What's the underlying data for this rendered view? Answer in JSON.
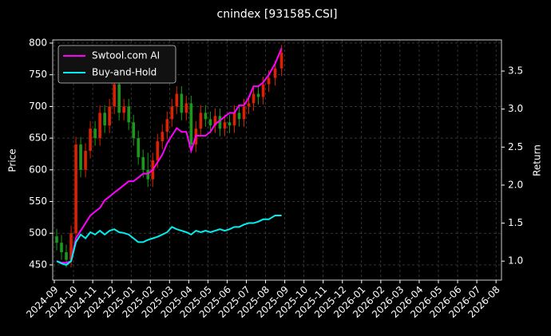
{
  "chart_data": {
    "type": "candlestick",
    "title": "cnindex [931585.CSI]",
    "ylabel": "Price",
    "y2label": "Return",
    "x": [
      "2024-09",
      "2024-09",
      "2024-09",
      "2024-09",
      "2024-10",
      "2024-10",
      "2024-10",
      "2024-10",
      "2024-11",
      "2024-11",
      "2024-11",
      "2024-11",
      "2024-12",
      "2024-12",
      "2024-12",
      "2024-12",
      "2025-01",
      "2025-01",
      "2025-01",
      "2025-01",
      "2025-02",
      "2025-02",
      "2025-02",
      "2025-02",
      "2025-03",
      "2025-03",
      "2025-03",
      "2025-03",
      "2025-04",
      "2025-04",
      "2025-04",
      "2025-04",
      "2025-05",
      "2025-05",
      "2025-05",
      "2025-05",
      "2025-06",
      "2025-06",
      "2025-06",
      "2025-06",
      "2025-07",
      "2025-07",
      "2025-07",
      "2025-07",
      "2025-08",
      "2025-08",
      "2025-08"
    ],
    "open": [
      495,
      485,
      470,
      458,
      500,
      640,
      600,
      630,
      665,
      650,
      690,
      670,
      700,
      735,
      690,
      700,
      675,
      650,
      620,
      600,
      585,
      615,
      645,
      660,
      680,
      700,
      720,
      690,
      705,
      640,
      665,
      690,
      680,
      670,
      685,
      665,
      675,
      670,
      690,
      680,
      700,
      705,
      720,
      715,
      735,
      745,
      760
    ],
    "high": [
      507,
      497,
      482,
      512,
      652,
      652,
      642,
      677,
      677,
      702,
      702,
      712,
      747,
      747,
      712,
      712,
      687,
      662,
      632,
      627,
      627,
      657,
      672,
      692,
      712,
      732,
      732,
      717,
      717,
      677,
      702,
      702,
      692,
      697,
      697,
      687,
      687,
      702,
      702,
      712,
      717,
      732,
      732,
      747,
      757,
      772,
      797
    ],
    "low": [
      473,
      458,
      446,
      446,
      488,
      588,
      588,
      618,
      638,
      638,
      658,
      658,
      688,
      678,
      678,
      663,
      638,
      608,
      588,
      573,
      573,
      603,
      633,
      648,
      668,
      688,
      678,
      678,
      628,
      628,
      653,
      668,
      658,
      658,
      653,
      653,
      658,
      658,
      668,
      668,
      688,
      693,
      703,
      703,
      723,
      733,
      748
    ],
    "close": [
      485,
      470,
      458,
      500,
      640,
      600,
      630,
      665,
      650,
      690,
      670,
      700,
      735,
      690,
      700,
      675,
      650,
      620,
      600,
      585,
      615,
      645,
      660,
      680,
      700,
      720,
      690,
      705,
      640,
      665,
      690,
      680,
      670,
      685,
      665,
      675,
      670,
      690,
      680,
      700,
      705,
      720,
      715,
      735,
      745,
      760,
      785
    ],
    "up_color": "#e02000",
    "down_color": "#1a9a1a",
    "series": [
      {
        "name": "Swtool.com AI",
        "color": "#ff00ff",
        "axis": "y2",
        "values": [
          1.0,
          0.98,
          0.98,
          1.0,
          1.3,
          1.4,
          1.5,
          1.6,
          1.65,
          1.7,
          1.8,
          1.85,
          1.9,
          1.95,
          2.0,
          2.05,
          2.05,
          2.1,
          2.15,
          2.15,
          2.2,
          2.3,
          2.4,
          2.55,
          2.65,
          2.75,
          2.7,
          2.7,
          2.45,
          2.65,
          2.65,
          2.65,
          2.7,
          2.8,
          2.85,
          2.9,
          2.95,
          2.95,
          3.05,
          3.05,
          3.15,
          3.3,
          3.3,
          3.35,
          3.45,
          3.6,
          3.8
        ]
      },
      {
        "name": "Buy-and-Hold",
        "color": "#00f0f0",
        "axis": "y2",
        "values": [
          1.0,
          0.97,
          0.95,
          1.0,
          1.25,
          1.35,
          1.3,
          1.38,
          1.35,
          1.4,
          1.35,
          1.4,
          1.42,
          1.38,
          1.37,
          1.35,
          1.3,
          1.25,
          1.25,
          1.28,
          1.3,
          1.32,
          1.35,
          1.38,
          1.45,
          1.42,
          1.4,
          1.38,
          1.35,
          1.4,
          1.38,
          1.4,
          1.38,
          1.4,
          1.42,
          1.4,
          1.42,
          1.45,
          1.45,
          1.48,
          1.5,
          1.5,
          1.52,
          1.55,
          1.55,
          1.6,
          1.6
        ]
      }
    ],
    "ylim": [
      426,
      805
    ],
    "yticks": [
      450,
      500,
      550,
      600,
      650,
      700,
      750,
      800
    ],
    "y2lim": [
      0.75,
      3.91
    ],
    "y2ticks": [
      {
        "value": 1,
        "label": "1.0"
      },
      1.5,
      {
        "value": 2,
        "label": "2.0"
      },
      2.5,
      {
        "value": 3,
        "label": "3.0"
      },
      3.5
    ],
    "xticks": [
      "2024-09",
      "2024-10",
      "2024-11",
      "2024-12",
      "2025-01",
      "2025-02",
      "2025-03",
      "2025-04",
      "2025-05",
      "2025-06",
      "2025-07",
      "2025-08",
      "2025-09",
      "2025-10",
      "2025-11",
      "2025-12",
      "2026-01",
      "2026-02",
      "2026-03",
      "2026-04",
      "2026-05",
      "2026-06",
      "2026-07",
      "2026-08"
    ],
    "grid": true,
    "legend": "upper left"
  }
}
